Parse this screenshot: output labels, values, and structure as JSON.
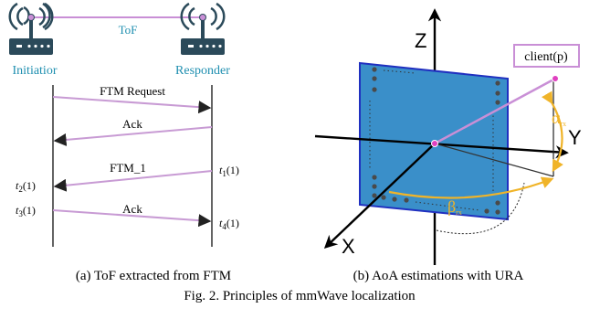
{
  "left_panel": {
    "tof_label": "ToF",
    "initiator_label": "Initiatior",
    "responder_label": "Responder",
    "messages": [
      {
        "label": "FTM Request"
      },
      {
        "label": "Ack"
      },
      {
        "label": "FTM_1"
      },
      {
        "label": "Ack"
      }
    ],
    "timestamps": {
      "t1": "t",
      "t1_sub": "1",
      "t1_arg": "(1)",
      "t2": "t",
      "t2_sub": "2",
      "t2_arg": "(1)",
      "t3": "t",
      "t3_sub": "3",
      "t3_arg": "(1)",
      "t4": "t",
      "t4_sub": "4",
      "t4_arg": "(1)"
    },
    "caption": "(a) ToF extracted from FTM"
  },
  "right_panel": {
    "axis_z": "Z",
    "axis_y": "Y",
    "axis_x": "X",
    "client_label": "client(p)",
    "alpha_label": "α",
    "alpha_sub": "rx",
    "beta_label": "β",
    "beta_sub": "rx",
    "caption": "(b) AoA estimations with URA"
  },
  "figure_caption": "Fig. 2.  Principles of mmWave localization",
  "colors": {
    "teal": "#1f8fb0",
    "router": "#2b4a5a",
    "pink_line": "#c98fd6",
    "arrow_line": "#c89bd4",
    "plane_fill": "#3a8fc9",
    "plane_edge": "#2030c0",
    "orange": "#f0b429",
    "magenta": "#e040c0"
  }
}
